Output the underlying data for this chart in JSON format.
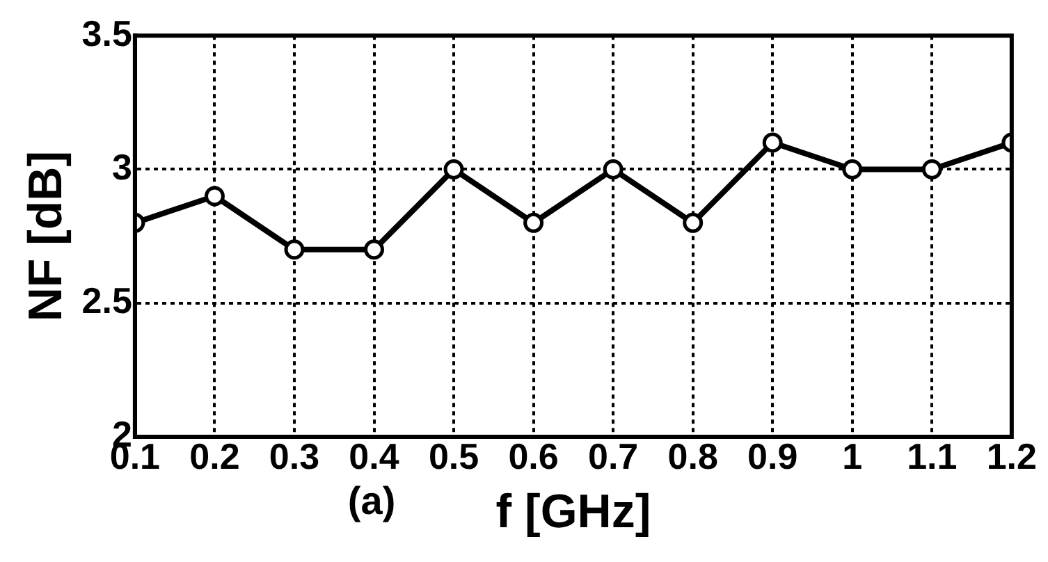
{
  "chart_data": {
    "type": "line",
    "xlabel": "f [GHz]",
    "ylabel": "NF [dB]",
    "annotations": [
      "(a)"
    ],
    "x": [
      0.1,
      0.2,
      0.3,
      0.4,
      0.5,
      0.6,
      0.7,
      0.8,
      0.9,
      1,
      1.1,
      1.2
    ],
    "series": [
      {
        "color": "#000000",
        "values": [
          2.8,
          2.9,
          2.7,
          2.7,
          3.0,
          2.8,
          3.0,
          2.8,
          3.1,
          3.0,
          3.0,
          3.1
        ]
      }
    ],
    "xlim": [
      0.1,
      1.2
    ],
    "xticks": [
      0.1,
      0.2,
      0.3,
      0.4,
      0.5,
      0.6,
      0.7,
      0.8,
      0.9,
      1,
      1.1,
      1.2
    ],
    "ylim": [
      2,
      3.5
    ],
    "yticks": [
      2,
      2.5,
      3,
      3.5
    ],
    "grid": true,
    "legend": false,
    "marker": "circle",
    "line_style": "solid"
  }
}
